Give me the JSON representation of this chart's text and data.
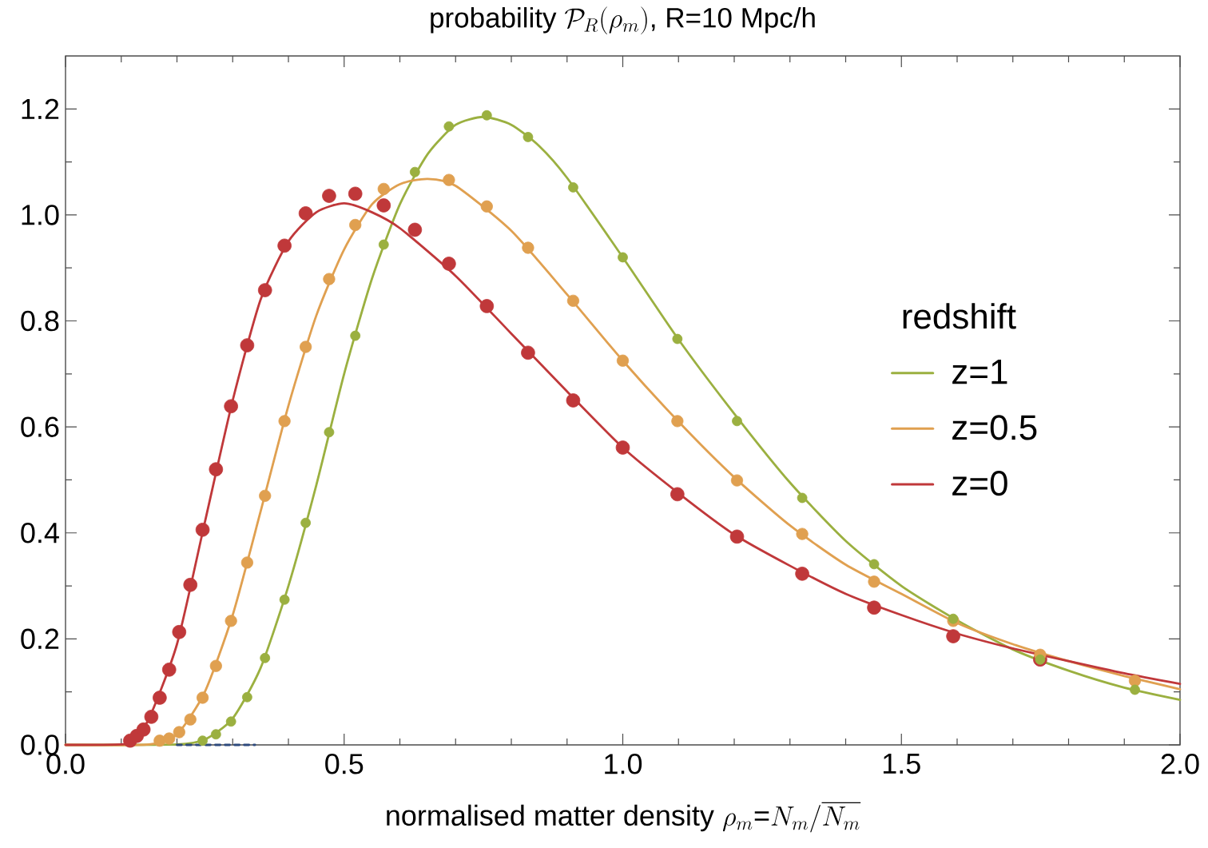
{
  "chart_data": {
    "type": "line",
    "title": "\\text{probability }\\mathcal{P}_R(\\rho_m)\\text{, R=10 Mpc/h}",
    "xlabel": "\\text{normalised matter density }\\rho_m\\text{=}N_m/\\overline{N_m}",
    "legend_title": "redshift",
    "legend": "right",
    "xlim": [
      0,
      2
    ],
    "ylim": [
      0,
      1.3
    ],
    "xticks": [
      {
        "value": 0,
        "label": "0.0"
      },
      {
        "value": 0.5,
        "label": "0.5"
      },
      {
        "value": 1,
        "label": "1.0"
      },
      {
        "value": 1.5,
        "label": "1.5"
      },
      {
        "value": 2,
        "label": "2.0"
      }
    ],
    "yticks": [
      {
        "value": 0,
        "label": "0.0"
      },
      {
        "value": 0.2,
        "label": "0.2"
      },
      {
        "value": 0.4,
        "label": "0.4"
      },
      {
        "value": 0.6,
        "label": "0.6"
      },
      {
        "value": 0.8,
        "label": "0.8"
      },
      {
        "value": 1,
        "label": "1.0"
      },
      {
        "value": 1.2,
        "label": "1.2"
      }
    ],
    "x": [
      0.116,
      0.128,
      0.14,
      0.154,
      0.169,
      0.186,
      0.204,
      0.224,
      0.246,
      0.27,
      0.297,
      0.326,
      0.358,
      0.393,
      0.431,
      0.473,
      0.52,
      0.571,
      0.627,
      0.688,
      0.756,
      0.83,
      0.911,
      1.0,
      1.098,
      1.205,
      1.322,
      1.451,
      1.593,
      1.749,
      1.919
    ],
    "series": [
      {
        "name": "z=1",
        "color": "#9bb040",
        "marker": "none",
        "line_style": "solid",
        "x": [
          0,
          0.2,
          0.25,
          0.3,
          0.35,
          0.4,
          0.45,
          0.5,
          0.55,
          0.6,
          0.65,
          0.7,
          0.75,
          0.8,
          0.85,
          0.9,
          1.0,
          1.1,
          1.2,
          1.3,
          1.4,
          1.5,
          1.6,
          1.7,
          1.8,
          1.9,
          2.0
        ],
        "values": [
          0,
          0.001,
          0.01,
          0.05,
          0.145,
          0.3,
          0.49,
          0.7,
          0.88,
          1.02,
          1.115,
          1.17,
          1.185,
          1.17,
          1.13,
          1.07,
          0.92,
          0.765,
          0.625,
          0.495,
          0.385,
          0.3,
          0.235,
          0.18,
          0.14,
          0.108,
          0.085
        ]
      },
      {
        "name": "z=0.5",
        "color": "#e0a050",
        "marker": "none",
        "line_style": "solid",
        "x": [
          0,
          0.15,
          0.2,
          0.25,
          0.3,
          0.35,
          0.4,
          0.45,
          0.5,
          0.55,
          0.6,
          0.65,
          0.7,
          0.8,
          0.9,
          1.0,
          1.1,
          1.2,
          1.3,
          1.4,
          1.5,
          1.6,
          1.7,
          1.8,
          1.9,
          2.0
        ],
        "values": [
          0,
          0.001,
          0.02,
          0.1,
          0.245,
          0.44,
          0.64,
          0.81,
          0.935,
          1.02,
          1.058,
          1.068,
          1.055,
          0.97,
          0.85,
          0.725,
          0.61,
          0.505,
          0.414,
          0.34,
          0.285,
          0.23,
          0.19,
          0.158,
          0.13,
          0.105
        ]
      },
      {
        "name": "z=0",
        "color": "#c0383a",
        "marker": "none",
        "line_style": "solid",
        "x": [
          0,
          0.1,
          0.12,
          0.15,
          0.2,
          0.25,
          0.3,
          0.35,
          0.4,
          0.45,
          0.5,
          0.55,
          0.6,
          0.7,
          0.8,
          0.9,
          1.0,
          1.1,
          1.2,
          1.3,
          1.4,
          1.5,
          1.6,
          1.7,
          1.8,
          1.9,
          2.0
        ],
        "values": [
          0,
          0.001,
          0.006,
          0.05,
          0.19,
          0.42,
          0.65,
          0.84,
          0.95,
          1.005,
          1.022,
          1.005,
          0.975,
          0.885,
          0.776,
          0.667,
          0.561,
          0.475,
          0.397,
          0.338,
          0.285,
          0.245,
          0.21,
          0.182,
          0.158,
          0.135,
          0.115
        ]
      },
      {
        "type": "scatter",
        "color": "#9bb040",
        "marker": "circle",
        "values": [
          null,
          null,
          null,
          null,
          null,
          null,
          null,
          null,
          0.008,
          0.02,
          0.044,
          0.09,
          0.164,
          0.274,
          0.419,
          0.59,
          0.772,
          0.944,
          1.081,
          1.167,
          1.188,
          1.147,
          1.052,
          0.92,
          0.766,
          0.611,
          0.466,
          0.341,
          0.238,
          0.161,
          0.104
        ]
      },
      {
        "type": "scatter",
        "color": "#e0a050",
        "marker": "circle",
        "values": [
          null,
          null,
          null,
          null,
          0.008,
          0.012,
          0.024,
          0.048,
          0.089,
          0.149,
          0.234,
          0.344,
          0.47,
          0.611,
          0.751,
          0.879,
          0.981,
          1.049,
          null,
          1.066,
          1.016,
          0.938,
          0.838,
          0.725,
          0.611,
          0.499,
          0.398,
          0.308,
          0.234,
          0.17,
          0.121
        ]
      },
      {
        "type": "scatter",
        "color": "#c0383a",
        "marker": "circle",
        "values": [
          0.008,
          0.017,
          0.029,
          0.053,
          0.089,
          0.142,
          0.213,
          0.302,
          0.406,
          0.52,
          0.639,
          0.754,
          0.858,
          0.942,
          1.003,
          1.036,
          1.04,
          1.018,
          0.972,
          0.908,
          0.828,
          0.74,
          0.65,
          0.561,
          0.473,
          0.393,
          0.323,
          0.259,
          0.205,
          0.161,
          null
        ]
      },
      {
        "color": "#2e4a7d",
        "marker": "none",
        "line_style": "dashed",
        "x": [
          0.2,
          0.34
        ],
        "values": [
          0,
          0
        ]
      }
    ]
  }
}
